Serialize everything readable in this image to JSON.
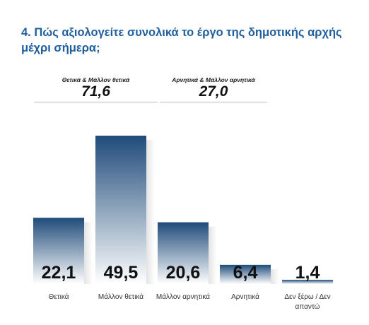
{
  "title": "4. Πώς αξιολογείτε συνολικά το έργο της δημοτικής αρχής μέχρι σήμερα;",
  "summary": {
    "positive": {
      "label": "Θετικά & Μάλλον θετικά",
      "value": "71,6"
    },
    "negative": {
      "label": "Αρνητικά & Μάλλον αρνητικά",
      "value": "27,0"
    }
  },
  "chart_data": {
    "type": "bar",
    "categories": [
      "Θετικά",
      "Μάλλον θετικά",
      "Μάλλον αρνητικά",
      "Αρνητικά",
      "Δεν ξέρω / Δεν απαντώ"
    ],
    "category_lines": [
      [
        "Θετικά"
      ],
      [
        "Μάλλον θετικά"
      ],
      [
        "Μάλλον αρνητικά"
      ],
      [
        "Αρνητικά"
      ],
      [
        "Δεν ξέρω / Δεν",
        "απαντώ"
      ]
    ],
    "values": [
      22.1,
      49.5,
      20.6,
      6.4,
      1.4
    ],
    "value_labels": [
      "22,1",
      "49,5",
      "20,6",
      "6,4",
      "1,4"
    ],
    "ylim": [
      0,
      50
    ],
    "grid": false,
    "colors": {
      "bar_top": "#1f4b7a",
      "bar_bottom": "#ffffff"
    }
  }
}
